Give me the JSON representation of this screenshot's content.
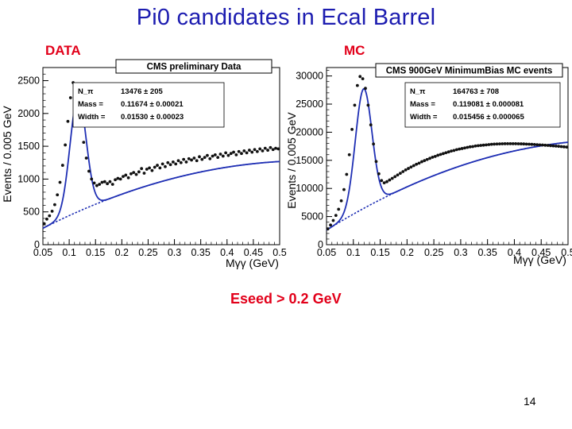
{
  "slide": {
    "title": "Pi0 candidates in Ecal Barrel",
    "cut_label": "Eseed > 0.2 GeV",
    "page_number": "14"
  },
  "colors": {
    "title": "#1c1cb0",
    "label": "#e2001a",
    "fit_line": "#1f2fb4",
    "data_points": "#111111"
  },
  "chart_data": [
    {
      "type": "scatter",
      "panel_label": "DATA",
      "title": "CMS preliminary Data",
      "xlabel": "Mγγ (GeV)",
      "ylabel": "Events / 0.005 GeV",
      "xlim": [
        0.05,
        0.5
      ],
      "ylim": [
        0,
        2700
      ],
      "xticks": [
        0.05,
        0.1,
        0.15,
        0.2,
        0.25,
        0.3,
        0.35,
        0.4,
        0.45,
        0.5
      ],
      "xtick_labels": [
        "0.05",
        "0.1",
        "0.15",
        "0.2",
        "0.25",
        "0.3",
        "0.35",
        "0.4",
        "0.45",
        "0.5"
      ],
      "yticks": [
        0,
        500,
        1000,
        1500,
        2000,
        2500
      ],
      "ytick_labels": [
        "0",
        "500",
        "1000",
        "1500",
        "2000",
        "2500"
      ],
      "stats": [
        {
          "name": "N_π",
          "value": "13476 ± 205"
        },
        {
          "name": "Mass =",
          "value": "0.11674 ± 0.00021"
        },
        {
          "name": "Width =",
          "value": "0.01530 ± 0.00023"
        }
      ],
      "fit": {
        "signal_yield": 13476,
        "mass": 0.11674,
        "width": 0.0153,
        "background": {
          "a": 230,
          "b": 4100,
          "c": -4000,
          "xmin": 0.045
        }
      },
      "series": [
        {
          "points": [
            [
              0.0525,
              320
            ],
            [
              0.0575,
              390
            ],
            [
              0.0625,
              440
            ],
            [
              0.0675,
              510
            ],
            [
              0.0725,
              610
            ],
            [
              0.0775,
              760
            ],
            [
              0.0825,
              950
            ],
            [
              0.0875,
              1210
            ],
            [
              0.0925,
              1520
            ],
            [
              0.0975,
              1880
            ],
            [
              0.1025,
              2240
            ],
            [
              0.1075,
              2470
            ],
            [
              0.1125,
              2380
            ],
            [
              0.1175,
              2180
            ],
            [
              0.1225,
              1900
            ],
            [
              0.1275,
              1560
            ],
            [
              0.1325,
              1320
            ],
            [
              0.1375,
              1120
            ],
            [
              0.1425,
              1000
            ],
            [
              0.1475,
              940
            ],
            [
              0.1525,
              900
            ],
            [
              0.1575,
              920
            ],
            [
              0.1625,
              950
            ],
            [
              0.1675,
              960
            ],
            [
              0.1725,
              930
            ],
            [
              0.1775,
              960
            ],
            [
              0.1825,
              920
            ],
            [
              0.1875,
              990
            ],
            [
              0.1925,
              1010
            ],
            [
              0.1975,
              1000
            ],
            [
              0.2025,
              1040
            ],
            [
              0.2075,
              1060
            ],
            [
              0.2125,
              1020
            ],
            [
              0.2175,
              1080
            ],
            [
              0.2225,
              1100
            ],
            [
              0.2275,
              1070
            ],
            [
              0.2325,
              1110
            ],
            [
              0.2375,
              1160
            ],
            [
              0.2425,
              1090
            ],
            [
              0.2475,
              1150
            ],
            [
              0.2525,
              1170
            ],
            [
              0.2575,
              1130
            ],
            [
              0.2625,
              1180
            ],
            [
              0.2675,
              1210
            ],
            [
              0.2725,
              1170
            ],
            [
              0.2775,
              1230
            ],
            [
              0.2825,
              1190
            ],
            [
              0.2875,
              1250
            ],
            [
              0.2925,
              1220
            ],
            [
              0.2975,
              1260
            ],
            [
              0.3025,
              1230
            ],
            [
              0.3075,
              1280
            ],
            [
              0.3125,
              1250
            ],
            [
              0.3175,
              1300
            ],
            [
              0.3225,
              1260
            ],
            [
              0.3275,
              1310
            ],
            [
              0.3325,
              1290
            ],
            [
              0.3375,
              1320
            ],
            [
              0.3425,
              1280
            ],
            [
              0.3475,
              1340
            ],
            [
              0.3525,
              1300
            ],
            [
              0.3575,
              1330
            ],
            [
              0.3625,
              1360
            ],
            [
              0.3675,
              1310
            ],
            [
              0.3725,
              1350
            ],
            [
              0.3775,
              1370
            ],
            [
              0.3825,
              1330
            ],
            [
              0.3875,
              1380
            ],
            [
              0.3925,
              1350
            ],
            [
              0.3975,
              1400
            ],
            [
              0.4025,
              1360
            ],
            [
              0.4075,
              1390
            ],
            [
              0.4125,
              1410
            ],
            [
              0.4175,
              1370
            ],
            [
              0.4225,
              1420
            ],
            [
              0.4275,
              1390
            ],
            [
              0.4325,
              1430
            ],
            [
              0.4375,
              1400
            ],
            [
              0.4425,
              1440
            ],
            [
              0.4475,
              1410
            ],
            [
              0.4525,
              1450
            ],
            [
              0.4575,
              1420
            ],
            [
              0.4625,
              1460
            ],
            [
              0.4675,
              1430
            ],
            [
              0.4725,
              1470
            ],
            [
              0.4775,
              1440
            ],
            [
              0.4825,
              1480
            ],
            [
              0.4875,
              1450
            ],
            [
              0.4925,
              1470
            ],
            [
              0.4975,
              1460
            ]
          ]
        }
      ]
    },
    {
      "type": "scatter",
      "panel_label": "MC",
      "title": "CMS 900GeV MinimumBias MC events",
      "xlabel": "Mγγ (GeV)",
      "ylabel": "Events / 0.005 GeV",
      "xlim": [
        0.05,
        0.5
      ],
      "ylim": [
        0,
        31500
      ],
      "xticks": [
        0.05,
        0.1,
        0.15,
        0.2,
        0.25,
        0.3,
        0.35,
        0.4,
        0.45,
        0.5
      ],
      "xtick_labels": [
        "0.05",
        "0.1",
        "0.15",
        "0.2",
        "0.25",
        "0.3",
        "0.35",
        "0.4",
        "0.45",
        "0.5"
      ],
      "yticks": [
        0,
        5000,
        10000,
        15000,
        20000,
        25000,
        30000
      ],
      "ytick_labels": [
        "0",
        "5000",
        "10000",
        "15000",
        "20000",
        "25000",
        "30000"
      ],
      "stats": [
        {
          "name": "N_π",
          "value": "164763 ± 708"
        },
        {
          "name": "Mass =",
          "value": "0.119081 ± 0.000081"
        },
        {
          "name": "Width =",
          "value": "0.015456 ± 0.000065"
        }
      ],
      "fit": {
        "signal_yield": 164763,
        "mass": 0.119081,
        "width": 0.015456,
        "background": {
          "a": 2300,
          "b": 60000,
          "c": -55000,
          "xmin": 0.045
        }
      },
      "series": [
        {
          "points": [
            [
              0.0525,
              2800
            ],
            [
              0.0575,
              3500
            ],
            [
              0.0625,
              4300
            ],
            [
              0.0675,
              5200
            ],
            [
              0.0725,
              6300
            ],
            [
              0.0775,
              7800
            ],
            [
              0.0825,
              9800
            ],
            [
              0.0875,
              12500
            ],
            [
              0.0925,
              16000
            ],
            [
              0.0975,
              20500
            ],
            [
              0.1025,
              24800
            ],
            [
              0.1075,
              28300
            ],
            [
              0.1125,
              29900
            ],
            [
              0.1175,
              29500
            ],
            [
              0.1225,
              27800
            ],
            [
              0.1275,
              24800
            ],
            [
              0.1325,
              21300
            ],
            [
              0.1375,
              17900
            ],
            [
              0.1425,
              14800
            ],
            [
              0.1475,
              12600
            ],
            [
              0.1525,
              11400
            ],
            [
              0.1575,
              11000
            ],
            [
              0.1625,
              11200
            ],
            [
              0.1675,
              11500
            ],
            [
              0.1725,
              11800
            ],
            [
              0.1775,
              12100
            ],
            [
              0.1825,
              12400
            ],
            [
              0.1875,
              12700
            ],
            [
              0.1925,
              13000
            ],
            [
              0.1975,
              13300
            ],
            [
              0.2025,
              13550
            ],
            [
              0.2075,
              13800
            ],
            [
              0.2125,
              14050
            ],
            [
              0.2175,
              14300
            ],
            [
              0.2225,
              14500
            ],
            [
              0.2275,
              14750
            ],
            [
              0.2325,
              14950
            ],
            [
              0.2375,
              15150
            ],
            [
              0.2425,
              15350
            ],
            [
              0.2475,
              15550
            ],
            [
              0.2525,
              15700
            ],
            [
              0.2575,
              15900
            ],
            [
              0.2625,
              16050
            ],
            [
              0.2675,
              16200
            ],
            [
              0.2725,
              16350
            ],
            [
              0.2775,
              16500
            ],
            [
              0.2825,
              16650
            ],
            [
              0.2875,
              16750
            ],
            [
              0.2925,
              16900
            ],
            [
              0.2975,
              17000
            ],
            [
              0.3025,
              17100
            ],
            [
              0.3075,
              17200
            ],
            [
              0.3125,
              17300
            ],
            [
              0.3175,
              17400
            ],
            [
              0.3225,
              17450
            ],
            [
              0.3275,
              17550
            ],
            [
              0.3325,
              17600
            ],
            [
              0.3375,
              17650
            ],
            [
              0.3425,
              17700
            ],
            [
              0.3475,
              17750
            ],
            [
              0.3525,
              17800
            ],
            [
              0.3575,
              17850
            ],
            [
              0.3625,
              17880
            ],
            [
              0.3675,
              17900
            ],
            [
              0.3725,
              17920
            ],
            [
              0.3775,
              17940
            ],
            [
              0.3825,
              17950
            ],
            [
              0.3875,
              17960
            ],
            [
              0.3925,
              17960
            ],
            [
              0.3975,
              17950
            ],
            [
              0.4025,
              17950
            ],
            [
              0.4075,
              17940
            ],
            [
              0.4125,
              17930
            ],
            [
              0.4175,
              17910
            ],
            [
              0.4225,
              17890
            ],
            [
              0.4275,
              17870
            ],
            [
              0.4325,
              17840
            ],
            [
              0.4375,
              17810
            ],
            [
              0.4425,
              17780
            ],
            [
              0.4475,
              17750
            ],
            [
              0.4525,
              17720
            ],
            [
              0.4575,
              17680
            ],
            [
              0.4625,
              17650
            ],
            [
              0.4675,
              17610
            ],
            [
              0.4725,
              17570
            ],
            [
              0.4775,
              17530
            ],
            [
              0.4825,
              17490
            ],
            [
              0.4875,
              17450
            ],
            [
              0.4925,
              17400
            ],
            [
              0.4975,
              17360
            ]
          ]
        }
      ]
    }
  ]
}
